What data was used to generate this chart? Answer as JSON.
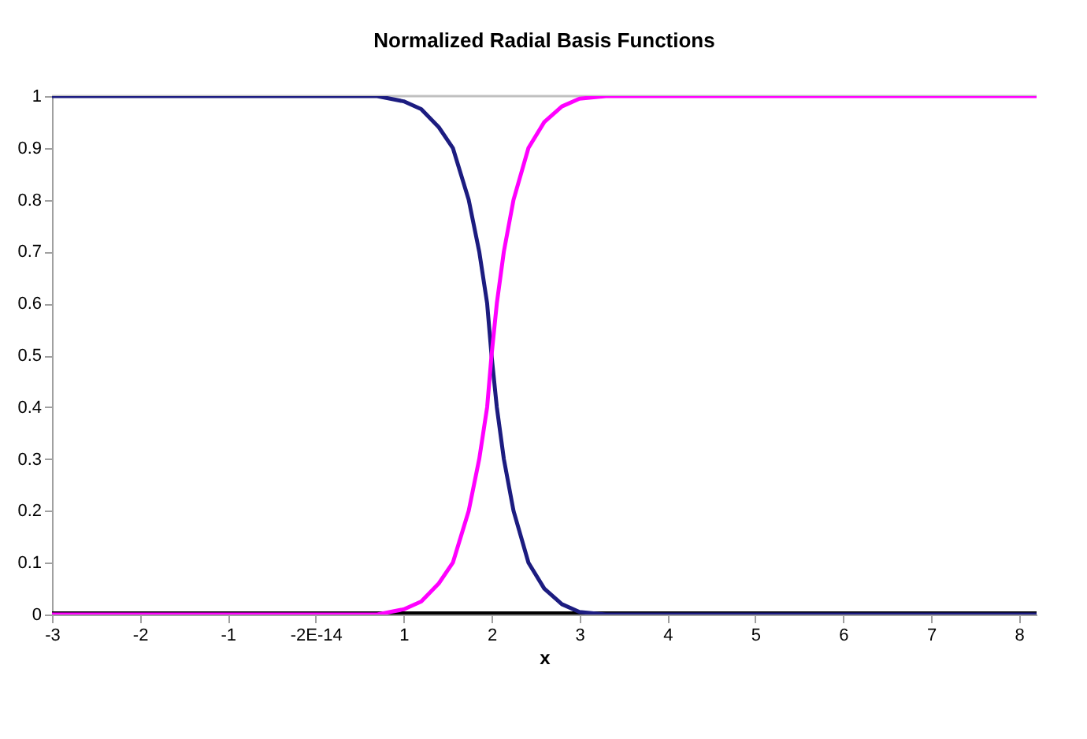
{
  "chart_data": {
    "type": "line",
    "title": "Normalized Radial Basis Functions",
    "xlabel": "x",
    "x": [
      -3,
      0.7,
      1.0,
      1.2,
      1.4,
      1.56,
      1.74,
      1.86,
      1.95,
      2.0,
      2.06,
      2.14,
      2.25,
      2.42,
      2.6,
      2.8,
      3.0,
      3.3,
      8.2
    ],
    "series": [
      {
        "color": "#000000",
        "values": [
          0,
          0,
          0,
          0,
          0,
          0,
          0,
          0,
          0,
          0,
          0,
          0,
          0,
          0,
          0,
          0,
          0,
          0,
          0
        ]
      },
      {
        "color": "#1c1c80",
        "values": [
          1,
          1,
          0.99,
          0.975,
          0.94,
          0.9,
          0.8,
          0.7,
          0.6,
          0.5,
          0.4,
          0.3,
          0.2,
          0.1,
          0.05,
          0.02,
          0.005,
          0,
          0
        ]
      },
      {
        "color": "#ff00ff",
        "values": [
          0,
          0,
          0.01,
          0.025,
          0.06,
          0.1,
          0.2,
          0.3,
          0.4,
          0.5,
          0.6,
          0.7,
          0.8,
          0.9,
          0.95,
          0.98,
          0.995,
          1,
          1
        ]
      }
    ],
    "xlim": [
      -3,
      8.2
    ],
    "xticks": [
      -3,
      -2,
      -1,
      {
        "value": 0,
        "label": "-2E-14"
      },
      1,
      2,
      3,
      4,
      5,
      6,
      7,
      8
    ],
    "ylim": [
      0,
      1
    ],
    "yticks": [
      0,
      0.1,
      0.2,
      0.3,
      0.4,
      0.5,
      0.6,
      0.7,
      0.8,
      0.9,
      1
    ],
    "ref_lines": [
      {
        "axis": "y",
        "value": 1,
        "color": "#c0c0c0"
      }
    ],
    "grid": false,
    "marker": "none",
    "line_style": "solid"
  }
}
